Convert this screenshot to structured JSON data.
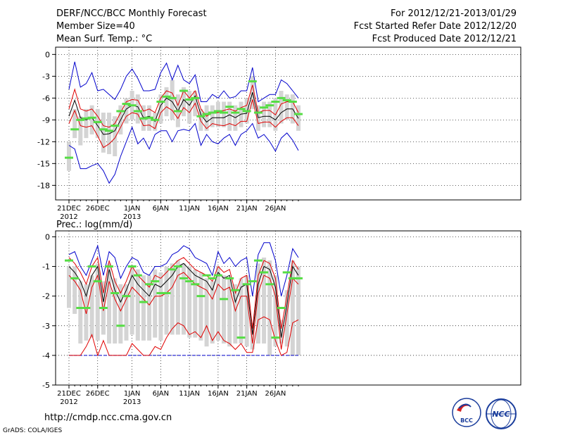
{
  "header": {
    "title": "DERF/NCC/BCC Monthly Forecast",
    "member_size": "Member Size=40",
    "variable": "Mean Surf. Temp.: °C",
    "period": "For 2012/12/21-2013/01/29",
    "started": "Fcst Started Refer Date 2012/12/20",
    "produced": "Fcst Produced Date 2012/12/21"
  },
  "colors": {
    "median": "#000000",
    "pct": "#e00000",
    "minmax": "#0000cc",
    "box": "#d4d4d4",
    "ens": "#55dd44",
    "grid": "#000000"
  },
  "x_labels": [
    {
      "day": 0,
      "line1": "21DEC",
      "line2": "2012"
    },
    {
      "day": 5,
      "line1": "26DEC",
      "line2": ""
    },
    {
      "day": 11,
      "line1": "1JAN",
      "line2": "2013"
    },
    {
      "day": 16,
      "line1": "6JAN",
      "line2": ""
    },
    {
      "day": 21,
      "line1": "11JAN",
      "line2": ""
    },
    {
      "day": 26,
      "line1": "16JAN",
      "line2": ""
    },
    {
      "day": 31,
      "line1": "21JAN",
      "line2": ""
    },
    {
      "day": 36,
      "line1": "26JAN",
      "line2": ""
    }
  ],
  "chart_data": [
    {
      "type": "box-line",
      "title": "Mean Surf. Temp.: °C",
      "x_days": 40,
      "ylim": [
        -20,
        1
      ],
      "yticks": [
        0,
        -3,
        -6,
        -9,
        -12,
        -15,
        -18
      ],
      "grid": "dotted",
      "median": [
        -8.5,
        -6.3,
        -8.7,
        -9.0,
        -8.7,
        -9.8,
        -11.0,
        -10.9,
        -10.5,
        -9.0,
        -7.5,
        -7.0,
        -7.2,
        -8.7,
        -8.5,
        -9.2,
        -7.0,
        -6.0,
        -6.5,
        -7.8,
        -6.2,
        -7.0,
        -5.7,
        -8.3,
        -9.3,
        -8.7,
        -8.7,
        -8.7,
        -8.3,
        -8.7,
        -8.2,
        -8.1,
        -5.2,
        -8.7,
        -8.5,
        -8.5,
        -9.0,
        -8.0,
        -7.5,
        -7.5,
        -8.8
      ],
      "p_upper": [
        -7.5,
        -4.8,
        -7.5,
        -7.8,
        -7.5,
        -8.5,
        -9.8,
        -10.0,
        -9.5,
        -8.0,
        -6.5,
        -6.2,
        -6.3,
        -7.8,
        -7.5,
        -8.0,
        -6.0,
        -5.0,
        -5.3,
        -7.0,
        -5.0,
        -6.0,
        -5.0,
        -7.5,
        -8.5,
        -8.0,
        -8.0,
        -7.7,
        -7.5,
        -7.8,
        -7.3,
        -7.0,
        -4.2,
        -8.0,
        -7.7,
        -7.7,
        -8.3,
        -6.8,
        -6.5,
        -6.5,
        -8.0
      ],
      "p_lower": [
        -9.5,
        -7.7,
        -9.8,
        -10.0,
        -9.8,
        -11.2,
        -12.8,
        -12.3,
        -11.5,
        -10.0,
        -8.5,
        -8.0,
        -8.2,
        -9.8,
        -9.7,
        -10.2,
        -8.0,
        -7.2,
        -7.7,
        -8.8,
        -7.3,
        -8.0,
        -6.7,
        -9.2,
        -10.2,
        -9.5,
        -9.7,
        -9.8,
        -9.5,
        -9.8,
        -9.2,
        -9.2,
        -6.2,
        -9.5,
        -9.3,
        -9.3,
        -10.0,
        -9.2,
        -8.7,
        -8.7,
        -9.8
      ],
      "max": [
        -4.8,
        -1.0,
        -4.5,
        -4.0,
        -2.5,
        -5.0,
        -4.8,
        -5.5,
        -6.2,
        -4.8,
        -3.0,
        -2.0,
        -3.3,
        -5.0,
        -5.0,
        -4.8,
        -2.5,
        -1.2,
        -3.5,
        -1.5,
        -3.5,
        -4.0,
        -2.8,
        -6.5,
        -6.5,
        -5.5,
        -6.0,
        -5.0,
        -6.0,
        -5.8,
        -5.0,
        -5.0,
        -1.8,
        -6.5,
        -6.0,
        -5.5,
        -5.5,
        -3.5,
        -4.0,
        -5.0,
        -6.0
      ],
      "min": [
        -12.5,
        -13.0,
        -15.7,
        -15.7,
        -15.3,
        -15.0,
        -16.0,
        -17.7,
        -16.5,
        -14.0,
        -12.0,
        -10.0,
        -12.3,
        -11.5,
        -13.0,
        -11.0,
        -10.5,
        -10.5,
        -12.0,
        -10.5,
        -10.3,
        -10.5,
        -9.5,
        -12.5,
        -11.0,
        -12.0,
        -12.3,
        -11.5,
        -11.0,
        -12.5,
        -11.0,
        -10.5,
        -9.5,
        -11.5,
        -11.0,
        -12.0,
        -13.3,
        -11.5,
        -10.8,
        -11.8,
        -13.2
      ],
      "box_top": [
        -12.0,
        -7.5,
        -8.5,
        -7.5,
        -7.0,
        -7.5,
        -8.0,
        -8.0,
        -8.5,
        -7.0,
        -6.0,
        -5.0,
        -5.5,
        -7.0,
        -7.0,
        -8.0,
        -5.5,
        -4.5,
        -3.5,
        -5.5,
        -4.5,
        -5.0,
        -5.0,
        -7.5,
        -7.0,
        -7.0,
        -6.5,
        -6.5,
        -6.5,
        -7.0,
        -6.5,
        -6.0,
        -3.0,
        -7.0,
        -6.5,
        -6.5,
        -6.0,
        -5.0,
        -5.5,
        -5.5,
        -7.0
      ],
      "box_bottom": [
        -16.0,
        -11.5,
        -12.5,
        -11.5,
        -11.0,
        -11.5,
        -13.5,
        -13.7,
        -14.0,
        -11.0,
        -9.5,
        -9.0,
        -9.5,
        -10.5,
        -10.5,
        -10.5,
        -9.5,
        -8.5,
        -9.0,
        -10.0,
        -8.5,
        -9.5,
        -8.5,
        -10.5,
        -10.5,
        -10.0,
        -10.0,
        -10.0,
        -10.5,
        -10.5,
        -10.0,
        -9.5,
        -7.5,
        -10.5,
        -10.0,
        -10.0,
        -10.5,
        -9.5,
        -9.0,
        -9.5,
        -10.5
      ],
      "ens": [
        -14.2,
        -10.3,
        -9.0,
        -8.8,
        -8.7,
        -9.3,
        -10.3,
        -10.5,
        -9.8,
        -7.8,
        -6.8,
        -7.0,
        -7.8,
        -8.8,
        -8.7,
        -9.0,
        -6.5,
        -5.8,
        -6.0,
        -7.8,
        -5.0,
        -6.2,
        -6.0,
        -8.5,
        -8.2,
        -8.0,
        -7.8,
        -8.0,
        -7.2,
        -8.0,
        -7.5,
        -7.8,
        -3.7,
        -8.0,
        -7.3,
        -7.0,
        -6.5,
        -6.0,
        -6.3,
        -6.5,
        -8.2
      ]
    },
    {
      "type": "box-line",
      "title": "Prec.: log(mm/d)",
      "x_days": 40,
      "ylim": [
        -5,
        0.2
      ],
      "yticks": [
        0,
        -1,
        -2,
        -3,
        -4,
        -5
      ],
      "grid": "dotted",
      "baseline": -4,
      "median": [
        -1.0,
        -1.2,
        -1.5,
        -2.0,
        -1.3,
        -1.0,
        -2.2,
        -1.1,
        -1.8,
        -2.2,
        -1.8,
        -1.3,
        -1.6,
        -1.8,
        -2.0,
        -1.6,
        -1.7,
        -1.5,
        -1.3,
        -1.0,
        -0.9,
        -1.1,
        -1.3,
        -1.4,
        -1.5,
        -1.8,
        -1.2,
        -1.4,
        -1.3,
        -2.2,
        -1.7,
        -1.6,
        -3.3,
        -1.6,
        -1.0,
        -1.1,
        -1.7,
        -3.4,
        -2.3,
        -1.0,
        -1.3
      ],
      "p_upper": [
        -0.7,
        -0.9,
        -1.2,
        -1.6,
        -1.0,
        -0.7,
        -1.9,
        -0.8,
        -1.5,
        -1.9,
        -1.5,
        -1.0,
        -1.3,
        -1.5,
        -1.7,
        -1.3,
        -1.4,
        -1.2,
        -1.0,
        -0.8,
        -0.7,
        -0.9,
        -1.1,
        -1.2,
        -1.3,
        -1.5,
        -1.0,
        -1.2,
        -1.1,
        -1.9,
        -1.4,
        -1.3,
        -3.1,
        -1.3,
        -0.8,
        -0.9,
        -1.4,
        -3.1,
        -2.0,
        -0.8,
        -1.1
      ],
      "p_lower": [
        -1.3,
        -1.5,
        -1.8,
        -2.6,
        -1.7,
        -1.3,
        -2.5,
        -1.5,
        -2.1,
        -2.5,
        -2.1,
        -1.7,
        -1.9,
        -2.1,
        -2.3,
        -2.0,
        -2.0,
        -1.9,
        -1.7,
        -1.3,
        -1.2,
        -1.4,
        -1.6,
        -1.7,
        -1.8,
        -2.1,
        -1.6,
        -1.8,
        -1.7,
        -2.5,
        -2.0,
        -2.0,
        -3.6,
        -1.9,
        -1.3,
        -1.4,
        -2.0,
        -3.8,
        -2.6,
        -1.4,
        -1.6
      ],
      "p_low": [
        -4.0,
        -4.0,
        -4.0,
        -3.7,
        -3.3,
        -4.0,
        -3.5,
        -4.0,
        -4.0,
        -4.0,
        -4.0,
        -3.6,
        -3.8,
        -4.0,
        -4.0,
        -3.7,
        -3.8,
        -3.4,
        -3.1,
        -2.9,
        -3.0,
        -3.3,
        -3.2,
        -3.4,
        -3.0,
        -3.5,
        -3.2,
        -3.5,
        -3.6,
        -3.8,
        -3.6,
        -3.9,
        -3.9,
        -2.8,
        -2.7,
        -2.8,
        -3.5,
        -4.0,
        -3.9,
        -2.9,
        -2.8
      ],
      "max": [
        -0.6,
        -0.5,
        -1.0,
        -1.3,
        -0.8,
        -0.3,
        -1.3,
        -0.5,
        -0.7,
        -1.4,
        -1.0,
        -0.7,
        -0.8,
        -1.2,
        -1.3,
        -1.0,
        -1.0,
        -0.9,
        -0.6,
        -0.5,
        -0.3,
        -0.4,
        -0.7,
        -0.8,
        -0.9,
        -1.3,
        -0.5,
        -0.9,
        -0.7,
        -1.0,
        -0.8,
        -0.7,
        -2.0,
        -0.6,
        -0.2,
        -0.2,
        -0.8,
        -2.0,
        -1.3,
        -0.4,
        -0.7
      ],
      "min": [
        -4.0,
        -4.0,
        -4.0,
        -4.0,
        -4.0,
        -4.0,
        -4.0,
        -4.0,
        -4.0,
        -4.0,
        -4.0,
        -4.0,
        -4.0,
        -4.0,
        -4.0,
        -4.0,
        -4.0,
        -4.0,
        -4.0,
        -4.0,
        -4.0,
        -4.0,
        -4.0,
        -4.0,
        -4.0,
        -4.0,
        -4.0,
        -4.0,
        -4.0,
        -4.0,
        -4.0,
        -4.0,
        -4.0,
        -4.0,
        -4.0,
        -4.0,
        -4.0,
        -4.0,
        -4.0,
        -4.0,
        -4.0
      ],
      "box_top": [
        -1.0,
        -1.0,
        -1.5,
        -1.6,
        -1.3,
        -0.9,
        -1.5,
        -0.9,
        -1.4,
        -1.6,
        -1.6,
        -1.0,
        -1.1,
        -1.3,
        -1.3,
        -1.1,
        -1.2,
        -1.0,
        -0.9,
        -0.8,
        -0.9,
        -1.0,
        -1.1,
        -1.2,
        -1.4,
        -1.5,
        -1.0,
        -1.3,
        -1.4,
        -1.6,
        -1.4,
        -1.3,
        -2.9,
        -0.9,
        -0.7,
        -0.8,
        -1.3,
        -2.8,
        -1.8,
        -0.8,
        -1.0
      ],
      "box_bottom": [
        -2.4,
        -2.6,
        -3.6,
        -3.5,
        -3.4,
        -3.5,
        -3.3,
        -3.6,
        -3.6,
        -3.6,
        -3.5,
        -3.3,
        -3.5,
        -3.5,
        -3.5,
        -3.4,
        -3.5,
        -3.3,
        -3.3,
        -3.3,
        -3.3,
        -3.4,
        -3.4,
        -3.5,
        -3.7,
        -3.6,
        -3.5,
        -3.6,
        -3.7,
        -3.6,
        -3.6,
        -3.7,
        -3.8,
        -3.6,
        -3.6,
        -4.0,
        -3.7,
        -3.6,
        -3.7,
        -4.0,
        -4.0
      ],
      "ens": [
        -0.8,
        -1.4,
        -2.4,
        -2.4,
        -1.0,
        -1.5,
        -2.4,
        -1.0,
        -1.9,
        -3.0,
        -2.0,
        -1.0,
        -1.3,
        -2.2,
        -1.6,
        -1.5,
        -1.9,
        -1.9,
        -1.1,
        -1.0,
        -1.4,
        -1.5,
        -1.6,
        -2.0,
        -1.3,
        -1.4,
        -1.3,
        -2.1,
        -1.4,
        -1.8,
        -3.4,
        -1.6,
        -1.5,
        -0.8,
        -1.2,
        -1.6,
        -3.4,
        -2.4,
        -1.2,
        -1.4,
        -1.4
      ]
    }
  ],
  "prec_label": "Prec.: log(mm/d)",
  "footer": {
    "url": "http://cmdp.ncc.cma.gov.cn",
    "credit": "GrADS: COLA/IGES",
    "logo_bcc": "BCC",
    "logo_ncc": "NCC"
  }
}
